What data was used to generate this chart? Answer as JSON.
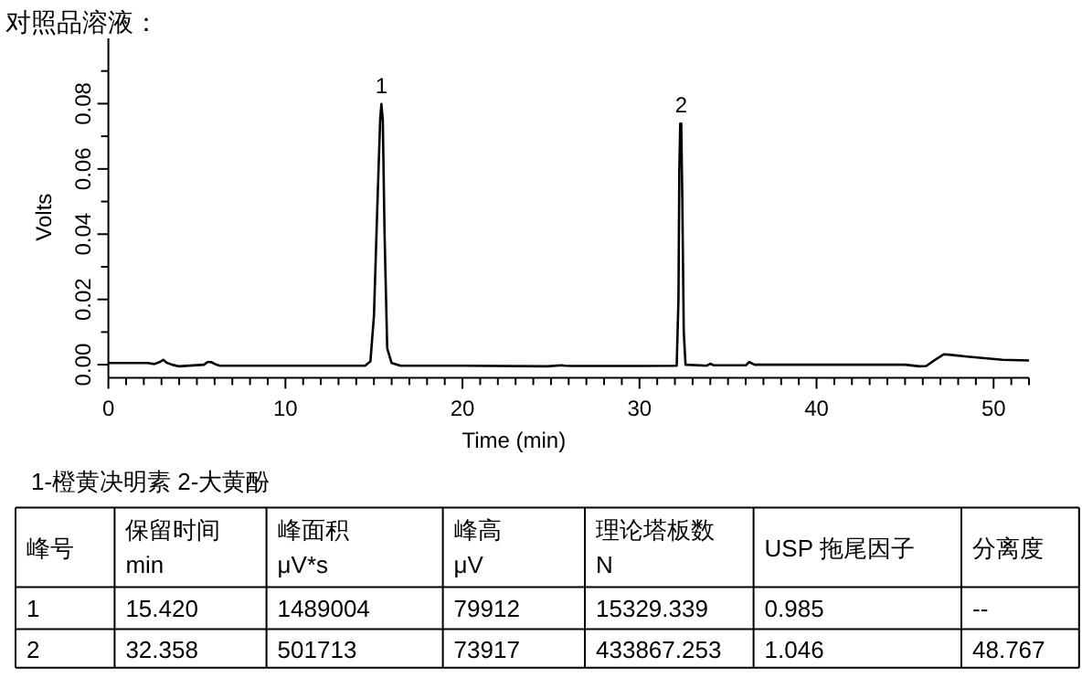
{
  "chart_data": {
    "type": "line",
    "title": "对照品溶液：",
    "xlabel": "Time (min)",
    "ylabel": "Volts",
    "xlim": [
      0,
      52
    ],
    "ylim": [
      -0.004,
      0.1
    ],
    "xticks": [
      0,
      {
        "value": 1,
        "label": null
      },
      {
        "value": 2,
        "label": null
      },
      {
        "value": 3,
        "label": null
      },
      {
        "value": 4,
        "label": null
      },
      {
        "value": 5,
        "label": null
      },
      {
        "value": 6,
        "label": null
      },
      {
        "value": 7,
        "label": null
      },
      {
        "value": 8,
        "label": null
      },
      {
        "value": 9,
        "label": null
      },
      10,
      {
        "value": 11,
        "label": null
      },
      {
        "value": 12,
        "label": null
      },
      {
        "value": 13,
        "label": null
      },
      {
        "value": 14,
        "label": null
      },
      {
        "value": 15,
        "label": null
      },
      {
        "value": 16,
        "label": null
      },
      {
        "value": 17,
        "label": null
      },
      {
        "value": 18,
        "label": null
      },
      {
        "value": 19,
        "label": null
      },
      20,
      {
        "value": 21,
        "label": null
      },
      {
        "value": 22,
        "label": null
      },
      {
        "value": 23,
        "label": null
      },
      {
        "value": 24,
        "label": null
      },
      {
        "value": 25,
        "label": null
      },
      {
        "value": 26,
        "label": null
      },
      {
        "value": 27,
        "label": null
      },
      {
        "value": 28,
        "label": null
      },
      {
        "value": 29,
        "label": null
      },
      30,
      {
        "value": 31,
        "label": null
      },
      {
        "value": 32,
        "label": null
      },
      {
        "value": 33,
        "label": null
      },
      {
        "value": 34,
        "label": null
      },
      {
        "value": 35,
        "label": null
      },
      {
        "value": 36,
        "label": null
      },
      {
        "value": 37,
        "label": null
      },
      {
        "value": 38,
        "label": null
      },
      {
        "value": 39,
        "label": null
      },
      40,
      {
        "value": 41,
        "label": null
      },
      {
        "value": 42,
        "label": null
      },
      {
        "value": 43,
        "label": null
      },
      {
        "value": 44,
        "label": null
      },
      {
        "value": 45,
        "label": null
      },
      {
        "value": 46,
        "label": null
      },
      {
        "value": 47,
        "label": null
      },
      {
        "value": 48,
        "label": null
      },
      {
        "value": 49,
        "label": null
      },
      50,
      {
        "value": 51,
        "label": null
      },
      {
        "value": 52,
        "label": null
      }
    ],
    "yticks": [
      {
        "value": 0,
        "label": "0.00"
      },
      {
        "value": 0.01,
        "label": null
      },
      {
        "value": 0.02,
        "label": "0.02"
      },
      {
        "value": 0.03,
        "label": null
      },
      {
        "value": 0.04,
        "label": "0.04"
      },
      {
        "value": 0.05,
        "label": null
      },
      {
        "value": 0.06,
        "label": "0.06"
      },
      {
        "value": 0.07,
        "label": null
      },
      {
        "value": 0.08,
        "label": "0.08"
      },
      {
        "value": 0.09,
        "label": null
      }
    ],
    "grid": false,
    "marker": "none",
    "line_style": "solid",
    "series": [
      {
        "color": "#000000",
        "x": [
          0,
          2.2,
          2.6,
          2.9,
          3.1,
          3.3,
          3.6,
          4.0,
          5.4,
          5.6,
          5.8,
          6.1,
          6.3,
          10,
          14.5,
          14.8,
          15.0,
          15.2,
          15.35,
          15.42,
          15.5,
          15.6,
          15.75,
          16.0,
          16.5,
          20,
          24.8,
          25.6,
          25.8,
          26.2,
          30,
          32.1,
          32.2,
          32.25,
          32.3,
          32.358,
          32.42,
          32.5,
          32.6,
          33.8,
          34.0,
          34.2,
          36.0,
          36.2,
          36.5,
          40,
          45.0,
          45.8,
          46.2,
          46.7,
          47.2,
          47.6,
          48.5,
          49.5,
          50.5,
          52
        ],
        "values": [
          0.0005,
          0.0005,
          0.0002,
          0.0008,
          0.0015,
          0.0006,
          0.0,
          -0.0005,
          0.0,
          0.0008,
          0.0008,
          0.0,
          -0.0003,
          -0.0003,
          -0.0003,
          0.001,
          0.015,
          0.05,
          0.075,
          0.0799,
          0.075,
          0.04,
          0.005,
          0.0005,
          -0.0003,
          -0.0003,
          -0.0005,
          -0.0002,
          -0.0003,
          -0.0004,
          -0.0004,
          -0.0003,
          0.02,
          0.06,
          0.0739,
          0.0739,
          0.05,
          0.01,
          0.0,
          -0.0003,
          0.0003,
          -0.0002,
          -0.0002,
          0.0008,
          0.0,
          0.0,
          0.0,
          -0.0005,
          -0.0004,
          0.0015,
          0.0032,
          0.003,
          0.0025,
          0.002,
          0.0015,
          0.0013
        ]
      }
    ],
    "annotations": [
      {
        "text": "1",
        "x": 15.42,
        "y": 0.0799
      },
      {
        "text": "2",
        "x": 32.358,
        "y": 0.0739
      },
      "1-橙黄决明素 2-大黄酚",
      "峰号",
      "保留时间\nmin",
      "峰面积\nμV*s",
      "峰高\nμV",
      "理论塔板数\nN",
      "USP 拖尾因子",
      "分离度",
      "1",
      "15.420",
      "1489004",
      "79912",
      "15329.339",
      "0.985",
      "--",
      "2",
      "32.358",
      "501713",
      "73917",
      "433867.253",
      "1.046",
      "48.767"
    ]
  }
}
